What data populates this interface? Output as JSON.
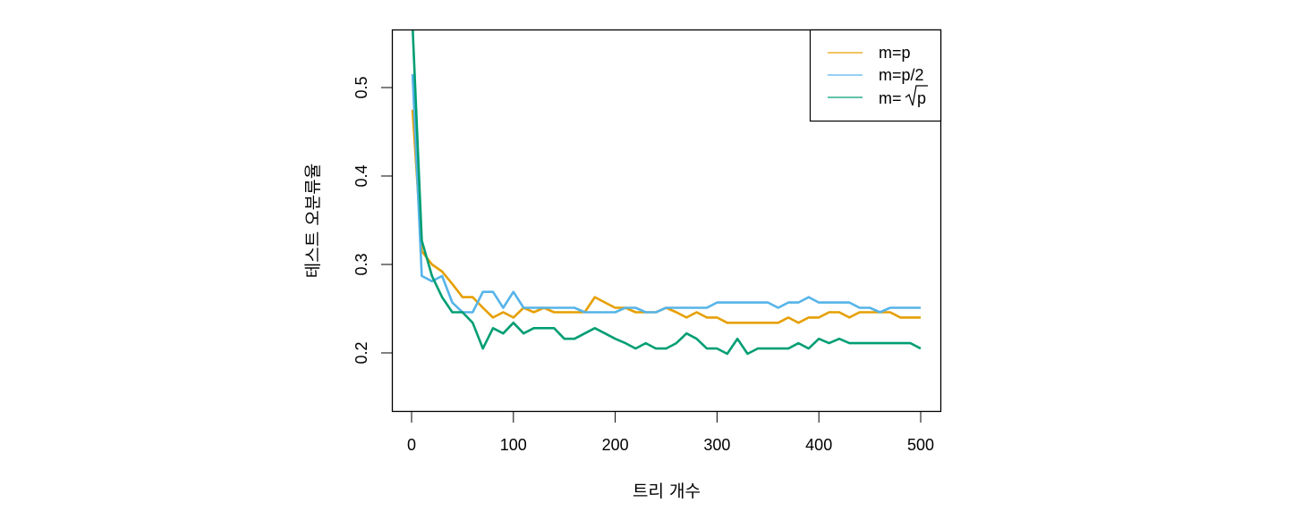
{
  "chart_data": {
    "type": "line",
    "title": "",
    "xlabel": "트리 개수",
    "ylabel": "테스트 오분류율",
    "xlim": [
      -18,
      520
    ],
    "ylim": [
      0.135,
      0.565
    ],
    "xticks": [
      0,
      100,
      200,
      300,
      400,
      500
    ],
    "yticks": [
      0.2,
      0.3,
      0.4,
      0.5
    ],
    "xtick_labels": [
      "0",
      "100",
      "200",
      "300",
      "400",
      "500"
    ],
    "ytick_labels": [
      "0.2",
      "0.3",
      "0.4",
      "0.5"
    ],
    "grid": false,
    "legend_position": "top-right",
    "x": [
      1,
      10,
      20,
      30,
      40,
      50,
      60,
      70,
      80,
      90,
      100,
      110,
      120,
      130,
      140,
      150,
      160,
      170,
      180,
      190,
      200,
      210,
      220,
      230,
      240,
      250,
      260,
      270,
      280,
      290,
      300,
      310,
      320,
      330,
      340,
      350,
      360,
      370,
      380,
      390,
      400,
      410,
      420,
      430,
      440,
      450,
      460,
      470,
      480,
      490,
      500
    ],
    "series": [
      {
        "name": "m=p",
        "color": "#E69F00",
        "values": [
          0.475,
          0.315,
          0.3,
          0.292,
          0.278,
          0.263,
          0.263,
          0.251,
          0.24,
          0.246,
          0.24,
          0.251,
          0.246,
          0.251,
          0.246,
          0.246,
          0.246,
          0.246,
          0.263,
          0.257,
          0.251,
          0.251,
          0.246,
          0.246,
          0.246,
          0.251,
          0.246,
          0.24,
          0.246,
          0.24,
          0.24,
          0.234,
          0.234,
          0.234,
          0.234,
          0.234,
          0.234,
          0.24,
          0.234,
          0.24,
          0.24,
          0.246,
          0.246,
          0.24,
          0.246,
          0.246,
          0.246,
          0.246,
          0.24,
          0.24,
          0.24
        ]
      },
      {
        "name": "m=p/2",
        "color": "#56B4E9",
        "values": [
          0.515,
          0.287,
          0.281,
          0.287,
          0.257,
          0.246,
          0.246,
          0.269,
          0.269,
          0.251,
          0.269,
          0.251,
          0.251,
          0.251,
          0.251,
          0.251,
          0.251,
          0.246,
          0.246,
          0.246,
          0.246,
          0.251,
          0.251,
          0.246,
          0.246,
          0.251,
          0.251,
          0.251,
          0.251,
          0.251,
          0.257,
          0.257,
          0.257,
          0.257,
          0.257,
          0.257,
          0.251,
          0.257,
          0.257,
          0.263,
          0.257,
          0.257,
          0.257,
          0.257,
          0.251,
          0.251,
          0.246,
          0.251,
          0.251,
          0.251,
          0.251
        ]
      },
      {
        "name": "m=√p",
        "color": "#009E73",
        "values": [
          0.57,
          0.327,
          0.287,
          0.263,
          0.246,
          0.246,
          0.234,
          0.205,
          0.228,
          0.222,
          0.234,
          0.222,
          0.228,
          0.228,
          0.228,
          0.216,
          0.216,
          0.222,
          0.228,
          0.222,
          0.216,
          0.211,
          0.205,
          0.211,
          0.205,
          0.205,
          0.211,
          0.222,
          0.216,
          0.205,
          0.205,
          0.199,
          0.216,
          0.199,
          0.205,
          0.205,
          0.205,
          0.205,
          0.211,
          0.205,
          0.216,
          0.211,
          0.216,
          0.211,
          0.211,
          0.211,
          0.211,
          0.211,
          0.211,
          0.211,
          0.205
        ]
      }
    ]
  },
  "legend": {
    "items": [
      {
        "label": "m=p",
        "color": "#E69F00"
      },
      {
        "label": "m=p/2",
        "color": "#56B4E9"
      },
      {
        "label_prefix": "m=",
        "label_radicand": "p",
        "color": "#009E73"
      }
    ]
  }
}
